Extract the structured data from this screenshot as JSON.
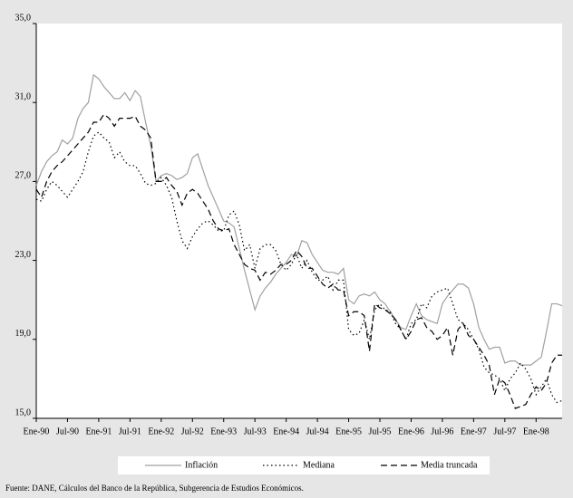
{
  "chart_data": {
    "type": "line",
    "categories": [
      "Ene-90",
      null,
      null,
      null,
      null,
      null,
      "Jul-90",
      null,
      null,
      null,
      null,
      null,
      "Ene-91",
      null,
      null,
      null,
      null,
      null,
      "Jul-91",
      null,
      null,
      null,
      null,
      null,
      "Ene-92",
      null,
      null,
      null,
      null,
      null,
      "Jul-92",
      null,
      null,
      null,
      null,
      null,
      "Ene-93",
      null,
      null,
      null,
      null,
      null,
      "Jul-93",
      null,
      null,
      null,
      null,
      null,
      "Ene-94",
      null,
      null,
      null,
      null,
      null,
      "Jul-94",
      null,
      null,
      null,
      null,
      null,
      "Ene-95",
      null,
      null,
      null,
      null,
      null,
      "Jul-95",
      null,
      null,
      null,
      null,
      null,
      "Ene-96",
      null,
      null,
      null,
      null,
      null,
      "Jul-96",
      null,
      null,
      null,
      null,
      null,
      "Ene-97",
      null,
      null,
      null,
      null,
      null,
      "Jul-97",
      null,
      null,
      null,
      null,
      null,
      "Ene-98",
      null,
      null,
      null,
      null,
      null
    ],
    "series": [
      {
        "name": "Inflación",
        "color": "#a0a0a0",
        "dash": "solid",
        "values": [
          26.8,
          27.5,
          28.0,
          28.3,
          28.5,
          29.1,
          28.9,
          29.2,
          30.2,
          30.7,
          31.0,
          32.4,
          32.2,
          31.8,
          31.5,
          31.2,
          31.2,
          31.5,
          31.1,
          31.6,
          31.3,
          30.0,
          28.8,
          27.0,
          27.3,
          27.4,
          27.3,
          27.1,
          27.2,
          27.4,
          28.2,
          28.4,
          27.6,
          26.8,
          26.2,
          25.6,
          25.0,
          24.9,
          24.7,
          23.6,
          22.5,
          21.5,
          20.5,
          21.2,
          21.6,
          21.9,
          22.3,
          22.6,
          22.9,
          23.3,
          23.2,
          24.0,
          23.9,
          23.3,
          22.9,
          22.5,
          22.4,
          22.4,
          22.3,
          22.6,
          21.0,
          20.8,
          21.2,
          21.3,
          21.2,
          21.4,
          21.0,
          20.8,
          20.4,
          20.0,
          19.6,
          19.5,
          20.2,
          20.8,
          20.2,
          20.0,
          19.9,
          19.8,
          20.8,
          21.2,
          21.5,
          21.8,
          21.8,
          21.6,
          20.8,
          19.6,
          19.0,
          18.5,
          18.6,
          18.6,
          17.8,
          17.9,
          17.9,
          17.7,
          17.7,
          17.7,
          17.9,
          18.1,
          19.4,
          20.8,
          20.8,
          20.7
        ]
      },
      {
        "name": "Mediana",
        "color": "#000000",
        "dash": "dotted",
        "values": [
          26.1,
          26.0,
          26.6,
          27.0,
          26.8,
          26.5,
          26.2,
          26.6,
          27.0,
          27.5,
          28.5,
          29.3,
          29.5,
          29.2,
          29.0,
          28.2,
          28.5,
          28.0,
          27.8,
          27.8,
          27.4,
          26.9,
          26.8,
          26.9,
          27.2,
          26.8,
          26.2,
          25.0,
          24.0,
          23.6,
          24.2,
          24.6,
          24.9,
          25.0,
          24.8,
          24.5,
          24.5,
          25.3,
          25.5,
          24.8,
          23.5,
          23.8,
          22.6,
          23.6,
          23.8,
          23.8,
          23.5,
          22.8,
          22.5,
          22.8,
          23.3,
          22.6,
          23.0,
          22.4,
          22.0,
          22.0,
          22.2,
          21.5,
          22.0,
          22.0,
          19.5,
          19.2,
          19.3,
          20.0,
          19.0,
          20.5,
          20.8,
          20.5,
          20.4,
          19.8,
          19.5,
          19.0,
          19.8,
          20.0,
          20.8,
          20.6,
          21.2,
          21.4,
          21.5,
          21.6,
          20.8,
          20.0,
          19.8,
          19.5,
          19.0,
          18.5,
          17.6,
          17.3,
          17.2,
          17.0,
          16.4,
          17.0,
          17.3,
          17.8,
          17.5,
          17.0,
          16.2,
          16.6,
          17.0,
          16.2,
          15.8,
          15.9
        ]
      },
      {
        "name": "Media truncada",
        "color": "#000000",
        "dash": "dashed",
        "values": [
          26.6,
          26.2,
          27.0,
          27.5,
          27.8,
          28.0,
          28.3,
          28.6,
          28.9,
          29.2,
          29.5,
          30.0,
          30.0,
          30.4,
          30.2,
          29.8,
          30.2,
          30.2,
          30.2,
          30.3,
          29.8,
          29.6,
          29.2,
          27.0,
          27.0,
          27.2,
          26.8,
          26.5,
          25.8,
          26.4,
          26.6,
          26.4,
          26.0,
          25.6,
          25.0,
          24.6,
          24.5,
          24.6,
          23.8,
          23.3,
          22.8,
          22.6,
          22.5,
          22.0,
          22.4,
          22.3,
          22.5,
          22.8,
          22.8,
          23.0,
          23.5,
          23.2,
          22.6,
          22.6,
          22.2,
          21.8,
          21.6,
          21.8,
          21.5,
          21.5,
          20.2,
          20.4,
          20.4,
          20.2,
          18.4,
          20.8,
          20.6,
          20.5,
          20.3,
          20.0,
          19.5,
          19.0,
          19.4,
          20.0,
          20.1,
          19.6,
          19.4,
          19.0,
          19.2,
          19.6,
          18.2,
          19.5,
          19.8,
          19.2,
          19.0,
          18.6,
          18.2,
          17.7,
          16.2,
          17.0,
          16.8,
          16.2,
          15.5,
          15.6,
          15.7,
          16.2,
          16.6,
          16.4,
          16.8,
          17.8,
          18.2,
          18.2
        ]
      }
    ],
    "ylim": [
      15,
      35
    ],
    "yticks": [
      {
        "value": 15,
        "label": "15,0"
      },
      {
        "value": 19,
        "label": "19,0"
      },
      {
        "value": 23,
        "label": "23,0"
      },
      {
        "value": 27,
        "label": "27,0"
      },
      {
        "value": 31,
        "label": "31,0"
      },
      {
        "value": 35,
        "label": "35,0"
      }
    ],
    "legend": "bottom",
    "source": "Fuente: DANE, Cálculos del Banco de la República, Subgerencia de Estudios Económicos."
  }
}
